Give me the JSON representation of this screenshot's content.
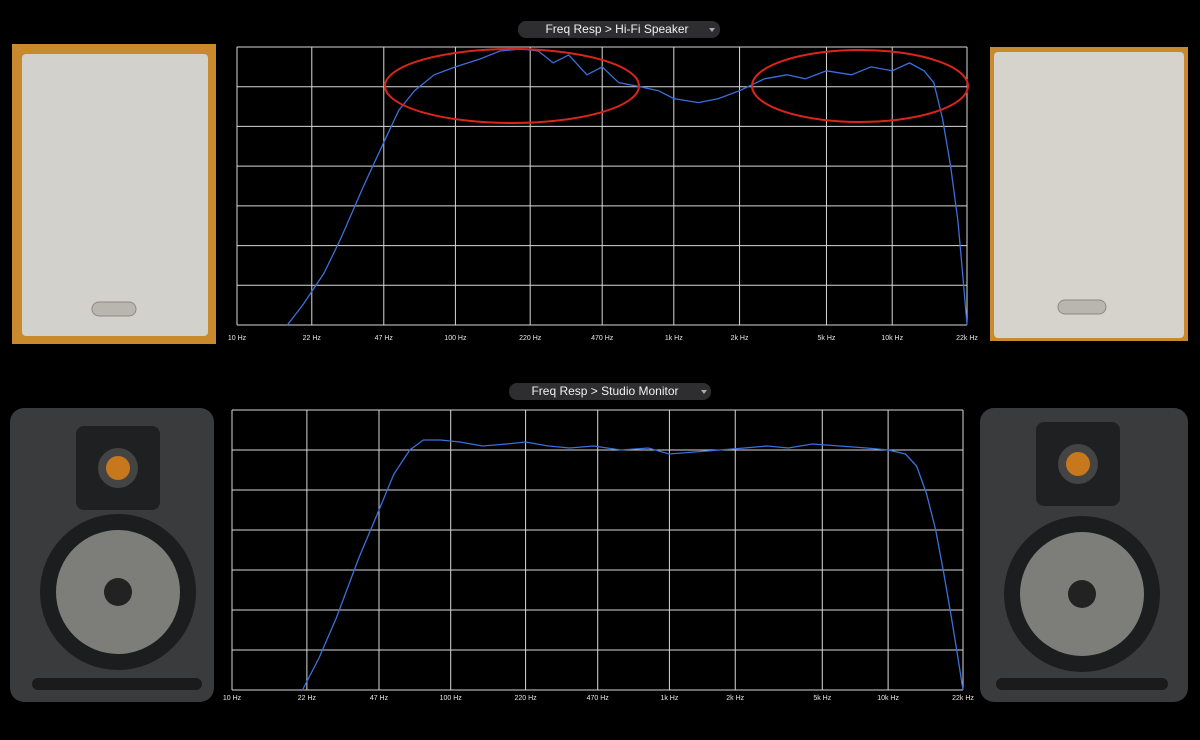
{
  "chart_data": [
    {
      "type": "line",
      "title": "Freq Resp > Hi-Fi Speaker",
      "xscale": "log",
      "grid": true,
      "xlim": [
        10,
        22000
      ],
      "ylim": [
        0,
        7
      ],
      "yticks": [
        0,
        1,
        2,
        3,
        4,
        5,
        6,
        7
      ],
      "xticks": [
        {
          "value": 10,
          "label": "10 Hz"
        },
        {
          "value": 22,
          "label": "22 Hz"
        },
        {
          "value": 47,
          "label": "47 Hz"
        },
        {
          "value": 100,
          "label": "100 Hz"
        },
        {
          "value": 220,
          "label": "220 Hz"
        },
        {
          "value": 470,
          "label": "470 Hz"
        },
        {
          "value": 1000,
          "label": "1k Hz"
        },
        {
          "value": 2000,
          "label": "2k Hz"
        },
        {
          "value": 5000,
          "label": "5k Hz"
        },
        {
          "value": 10000,
          "label": "10k Hz"
        },
        {
          "value": 22000,
          "label": "22k Hz"
        }
      ],
      "color": "#3b6fda",
      "x": [
        17,
        20,
        25,
        30,
        38,
        47,
        55,
        65,
        80,
        100,
        130,
        160,
        200,
        240,
        280,
        330,
        400,
        470,
        560,
        700,
        850,
        1000,
        1300,
        1600,
        2000,
        2600,
        3300,
        4000,
        5000,
        6500,
        8000,
        10000,
        12000,
        14000,
        15500,
        17000,
        18500,
        20000,
        21000,
        22000
      ],
      "values": [
        0,
        0.5,
        1.3,
        2.2,
        3.5,
        4.6,
        5.4,
        5.9,
        6.3,
        6.5,
        6.7,
        6.9,
        6.95,
        6.9,
        6.6,
        6.8,
        6.3,
        6.5,
        6.1,
        6.0,
        5.9,
        5.7,
        5.6,
        5.7,
        5.9,
        6.2,
        6.3,
        6.2,
        6.4,
        6.3,
        6.5,
        6.4,
        6.6,
        6.4,
        6.1,
        5.2,
        4.0,
        2.6,
        1.3,
        0
      ]
    },
    {
      "type": "line",
      "title": "Freq Resp > Studio Monitor",
      "xscale": "log",
      "grid": true,
      "xlim": [
        10,
        22000
      ],
      "ylim": [
        0,
        7
      ],
      "yticks": [
        0,
        1,
        2,
        3,
        4,
        5,
        6,
        7
      ],
      "xticks": [
        {
          "value": 10,
          "label": "10 Hz"
        },
        {
          "value": 22,
          "label": "22 Hz"
        },
        {
          "value": 47,
          "label": "47 Hz"
        },
        {
          "value": 100,
          "label": "100 Hz"
        },
        {
          "value": 220,
          "label": "220 Hz"
        },
        {
          "value": 470,
          "label": "470 Hz"
        },
        {
          "value": 1000,
          "label": "1k Hz"
        },
        {
          "value": 2000,
          "label": "2k Hz"
        },
        {
          "value": 5000,
          "label": "5k Hz"
        },
        {
          "value": 10000,
          "label": "10k Hz"
        },
        {
          "value": 22000,
          "label": "22k Hz"
        }
      ],
      "color": "#3b6fda",
      "x": [
        21,
        25,
        30,
        38,
        47,
        55,
        65,
        75,
        90,
        110,
        140,
        180,
        220,
        280,
        350,
        450,
        600,
        800,
        1000,
        1300,
        1700,
        2200,
        2800,
        3500,
        4500,
        6000,
        8000,
        10000,
        12000,
        13500,
        15000,
        16500,
        18000,
        19500,
        21000,
        22000
      ],
      "values": [
        0,
        0.8,
        1.8,
        3.3,
        4.5,
        5.4,
        6.0,
        6.25,
        6.25,
        6.2,
        6.1,
        6.15,
        6.2,
        6.1,
        6.05,
        6.1,
        6.0,
        6.05,
        5.9,
        5.95,
        6.0,
        6.05,
        6.1,
        6.05,
        6.15,
        6.1,
        6.05,
        6.0,
        5.9,
        5.6,
        4.9,
        4.0,
        2.9,
        1.8,
        0.7,
        0
      ]
    }
  ]
}
